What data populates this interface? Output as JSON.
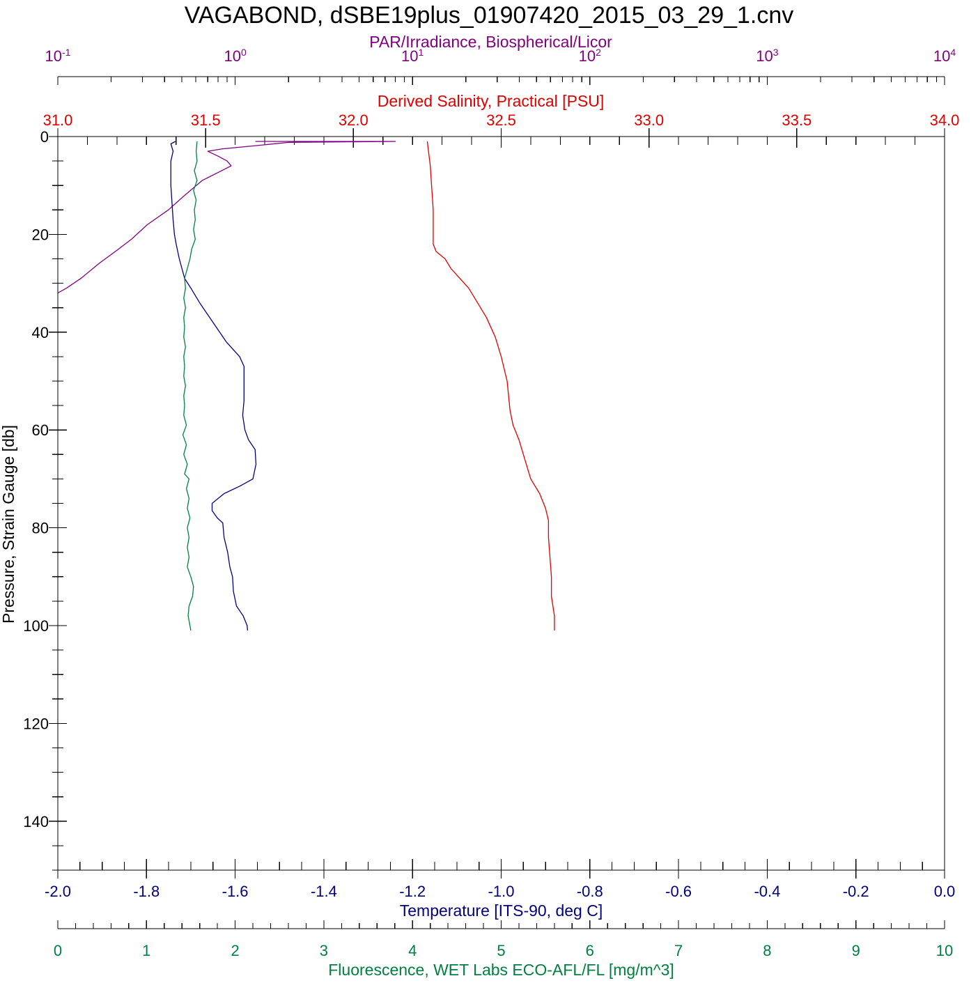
{
  "title": "VAGABOND, dSBE19plus_01907420_2015_03_29_1.cnv",
  "colors": {
    "par": "#800080",
    "salinity": "#e00000",
    "temperature": "#000080",
    "fluorescence": "#008040",
    "axis": "#000000"
  },
  "chart_data": {
    "type": "line",
    "orientation": "vertical-profile",
    "title": "VAGABOND, dSBE19plus_01907420_2015_03_29_1.cnv",
    "grid": false,
    "legend": "none",
    "y_axis": {
      "label": "Pressure, Strain Gauge [db]",
      "range": [
        0,
        150
      ],
      "inverted": true,
      "ticks": [
        0,
        20,
        40,
        60,
        80,
        100,
        120,
        140
      ],
      "tick_labels": [
        "0",
        "20",
        "40",
        "60",
        "80",
        "100",
        "120",
        "140"
      ]
    },
    "x_axes": [
      {
        "id": "par",
        "label": "PAR/Irradiance, Biospherical/Licor",
        "position": "top-outer",
        "scale": "log",
        "range": [
          0.1,
          10000
        ],
        "tick_labels": [
          {
            "base": "10",
            "exp": "-1"
          },
          {
            "base": "10",
            "exp": "0"
          },
          {
            "base": "10",
            "exp": "1"
          },
          {
            "base": "10",
            "exp": "2"
          },
          {
            "base": "10",
            "exp": "3"
          },
          {
            "base": "10",
            "exp": "4"
          }
        ]
      },
      {
        "id": "salinity",
        "label": "Derived Salinity, Practical [PSU]",
        "position": "top",
        "scale": "linear",
        "range": [
          31.0,
          34.0
        ],
        "tick_labels": [
          "31.0",
          "31.5",
          "32.0",
          "32.5",
          "33.0",
          "33.5",
          "34.0"
        ]
      },
      {
        "id": "temperature",
        "label": "Temperature [ITS-90, deg C]",
        "position": "bottom",
        "scale": "linear",
        "range": [
          -2.0,
          0.0
        ],
        "tick_labels": [
          "-2.0",
          "-1.8",
          "-1.6",
          "-1.4",
          "-1.2",
          "-1.0",
          "-0.8",
          "-0.6",
          "-0.4",
          "-0.2",
          "0.0"
        ]
      },
      {
        "id": "fluorescence",
        "label": "Fluorescence, WET Labs ECO-AFL/FL [mg/m^3]",
        "position": "bottom-outer",
        "scale": "linear",
        "range": [
          0,
          10
        ],
        "tick_labels": [
          "0",
          "1",
          "2",
          "3",
          "4",
          "5",
          "6",
          "7",
          "8",
          "9",
          "10"
        ]
      }
    ],
    "series": [
      {
        "axis": "par",
        "points": [
          [
            1.3,
            1.0
          ],
          [
            8.0,
            1.0
          ],
          [
            2.0,
            1.2
          ],
          [
            1.2,
            2.0
          ],
          [
            0.85,
            2.5
          ],
          [
            0.7,
            3.0
          ],
          [
            0.8,
            4.0
          ],
          [
            0.9,
            5.0
          ],
          [
            0.95,
            6.0
          ],
          [
            0.65,
            9.0
          ],
          [
            0.52,
            12.0
          ],
          [
            0.42,
            15.0
          ],
          [
            0.32,
            18.0
          ],
          [
            0.26,
            21.0
          ],
          [
            0.22,
            23.0
          ],
          [
            0.17,
            26.0
          ],
          [
            0.135,
            29.0
          ],
          [
            0.112,
            31.0
          ],
          [
            0.1,
            32.0
          ]
        ]
      },
      {
        "axis": "salinity",
        "points": [
          [
            32.25,
            1.0
          ],
          [
            32.26,
            6.0
          ],
          [
            32.27,
            15.0
          ],
          [
            32.27,
            22.0
          ],
          [
            32.28,
            23.5
          ],
          [
            32.31,
            25.0
          ],
          [
            32.33,
            27.0
          ],
          [
            32.36,
            29.0
          ],
          [
            32.39,
            31.0
          ],
          [
            32.42,
            34.0
          ],
          [
            32.45,
            37.0
          ],
          [
            32.48,
            41.0
          ],
          [
            32.5,
            45.0
          ],
          [
            32.52,
            50.0
          ],
          [
            32.53,
            56.0
          ],
          [
            32.54,
            59.0
          ],
          [
            32.56,
            62.0
          ],
          [
            32.58,
            66.0
          ],
          [
            32.6,
            70.0
          ],
          [
            32.63,
            73.0
          ],
          [
            32.65,
            76.0
          ],
          [
            32.66,
            78.5
          ],
          [
            32.66,
            82.0
          ],
          [
            32.67,
            90.0
          ],
          [
            32.67,
            94.0
          ],
          [
            32.68,
            98.0
          ],
          [
            32.68,
            101.0
          ]
        ]
      },
      {
        "axis": "temperature",
        "points": [
          [
            -1.735,
            1.0
          ],
          [
            -1.745,
            1.5
          ],
          [
            -1.74,
            3.0
          ],
          [
            -1.745,
            5.0
          ],
          [
            -1.745,
            10.0
          ],
          [
            -1.74,
            17.0
          ],
          [
            -1.737,
            20.0
          ],
          [
            -1.733,
            22.0
          ],
          [
            -1.726,
            25.0
          ],
          [
            -1.72,
            27.0
          ],
          [
            -1.714,
            29.0
          ],
          [
            -1.7,
            31.0
          ],
          [
            -1.68,
            34.0
          ],
          [
            -1.665,
            36.0
          ],
          [
            -1.65,
            38.0
          ],
          [
            -1.635,
            40.0
          ],
          [
            -1.62,
            42.0
          ],
          [
            -1.59,
            45.0
          ],
          [
            -1.58,
            47.0
          ],
          [
            -1.58,
            54.0
          ],
          [
            -1.583,
            57.0
          ],
          [
            -1.578,
            60.0
          ],
          [
            -1.57,
            62.0
          ],
          [
            -1.555,
            64.0
          ],
          [
            -1.553,
            67.0
          ],
          [
            -1.56,
            70.0
          ],
          [
            -1.59,
            71.5
          ],
          [
            -1.625,
            73.0
          ],
          [
            -1.652,
            75.0
          ],
          [
            -1.652,
            76.5
          ],
          [
            -1.64,
            78.0
          ],
          [
            -1.628,
            79.0
          ],
          [
            -1.625,
            82.0
          ],
          [
            -1.617,
            85.0
          ],
          [
            -1.612,
            88.0
          ],
          [
            -1.606,
            90.0
          ],
          [
            -1.604,
            93.0
          ],
          [
            -1.597,
            96.0
          ],
          [
            -1.582,
            98.0
          ],
          [
            -1.573,
            100.0
          ],
          [
            -1.572,
            101.0
          ]
        ]
      },
      {
        "axis": "fluorescence",
        "points": [
          [
            1.57,
            1.0
          ],
          [
            1.56,
            3.0
          ],
          [
            1.57,
            5.0
          ],
          [
            1.54,
            7.0
          ],
          [
            1.57,
            9.0
          ],
          [
            1.53,
            11.0
          ],
          [
            1.56,
            13.0
          ],
          [
            1.54,
            15.0
          ],
          [
            1.55,
            17.0
          ],
          [
            1.53,
            19.0
          ],
          [
            1.55,
            21.0
          ],
          [
            1.51,
            23.0
          ],
          [
            1.49,
            25.0
          ],
          [
            1.46,
            27.0
          ],
          [
            1.43,
            29.0
          ],
          [
            1.44,
            31.0
          ],
          [
            1.42,
            33.0
          ],
          [
            1.44,
            35.0
          ],
          [
            1.42,
            37.0
          ],
          [
            1.43,
            39.0
          ],
          [
            1.42,
            41.0
          ],
          [
            1.44,
            43.0
          ],
          [
            1.42,
            45.0
          ],
          [
            1.43,
            47.0
          ],
          [
            1.42,
            49.0
          ],
          [
            1.44,
            51.0
          ],
          [
            1.42,
            53.0
          ],
          [
            1.43,
            55.0
          ],
          [
            1.42,
            57.0
          ],
          [
            1.45,
            59.0
          ],
          [
            1.41,
            61.0
          ],
          [
            1.45,
            63.0
          ],
          [
            1.42,
            65.0
          ],
          [
            1.46,
            67.0
          ],
          [
            1.43,
            69.0
          ],
          [
            1.48,
            70.0
          ],
          [
            1.45,
            72.0
          ],
          [
            1.48,
            74.0
          ],
          [
            1.46,
            76.0
          ],
          [
            1.49,
            78.0
          ],
          [
            1.46,
            80.0
          ],
          [
            1.48,
            82.0
          ],
          [
            1.46,
            84.0
          ],
          [
            1.48,
            86.0
          ],
          [
            1.46,
            88.0
          ],
          [
            1.5,
            90.0
          ],
          [
            1.53,
            92.0
          ],
          [
            1.52,
            94.0
          ],
          [
            1.48,
            96.0
          ],
          [
            1.47,
            98.0
          ],
          [
            1.49,
            100.0
          ],
          [
            1.5,
            101.0
          ]
        ]
      }
    ]
  }
}
